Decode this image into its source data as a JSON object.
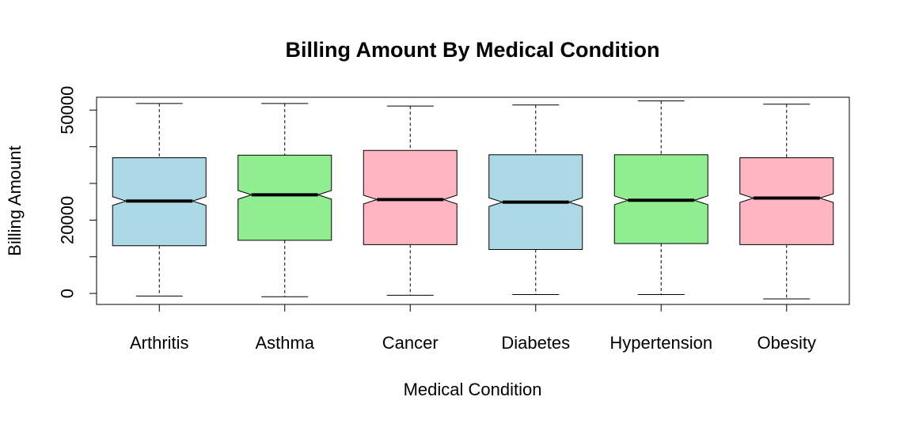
{
  "chart_data": {
    "type": "boxplot",
    "title": "Billing Amount By Medical Condition",
    "xlabel": "Medical Condition",
    "ylabel": "Billing Amount",
    "ylim": [
      -3000,
      53500
    ],
    "yticks": [
      0,
      10000,
      20000,
      30000,
      40000,
      50000
    ],
    "ytick_labels": [
      "0",
      "",
      "20000",
      "",
      "",
      "50000"
    ],
    "notched": true,
    "categories": [
      "Arthritis",
      "Asthma",
      "Cancer",
      "Diabetes",
      "Hypertension",
      "Obesity"
    ],
    "colors": [
      "#add8e6",
      "#90ee90",
      "#ffb6c1",
      "#add8e6",
      "#90ee90",
      "#ffb6c1"
    ],
    "boxes": [
      {
        "category": "Arthritis",
        "whisker_low": -700,
        "q1": 13000,
        "median": 25200,
        "q3": 37000,
        "whisker_high": 51800
      },
      {
        "category": "Asthma",
        "whisker_low": -900,
        "q1": 14500,
        "median": 26900,
        "q3": 37700,
        "whisker_high": 51800
      },
      {
        "category": "Cancer",
        "whisker_low": -500,
        "q1": 13300,
        "median": 25600,
        "q3": 39000,
        "whisker_high": 51100
      },
      {
        "category": "Diabetes",
        "whisker_low": -300,
        "q1": 12000,
        "median": 24900,
        "q3": 37800,
        "whisker_high": 51400
      },
      {
        "category": "Hypertension",
        "whisker_low": -300,
        "q1": 13600,
        "median": 25400,
        "q3": 37800,
        "whisker_high": 52500
      },
      {
        "category": "Obesity",
        "whisker_low": -1500,
        "q1": 13300,
        "median": 26000,
        "q3": 37000,
        "whisker_high": 51600
      }
    ],
    "legend": "none",
    "grid": false
  }
}
